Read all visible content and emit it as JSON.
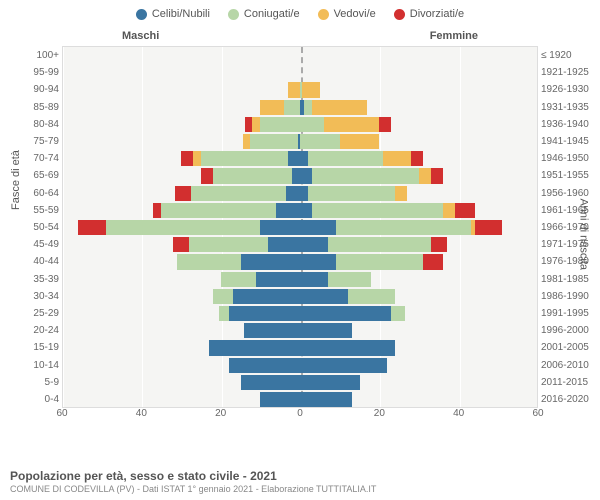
{
  "legend": [
    {
      "label": "Celibi/Nubili",
      "color": "#3a75a1"
    },
    {
      "label": "Coniugati/e",
      "color": "#b7d6a7"
    },
    {
      "label": "Vedovi/e",
      "color": "#f2bc57"
    },
    {
      "label": "Divorziati/e",
      "color": "#d22f2f"
    }
  ],
  "side_labels": {
    "m": "Maschi",
    "f": "Femmine"
  },
  "axis_labels": {
    "left": "Fasce di età",
    "right": "Anni di nascita"
  },
  "chart": {
    "type": "population-pyramid",
    "background_color": "#f5f5f3",
    "grid_color": "#ffffff",
    "center_color": "#aaaaaa",
    "xmax": 60,
    "xtick_step": 20,
    "xticks": [
      60,
      40,
      20,
      0,
      20,
      40,
      60
    ],
    "row_height": 17.2,
    "rows": [
      {
        "age": "100+",
        "birth": "≤ 1920",
        "m": [
          0,
          0,
          0,
          0
        ],
        "f": [
          0,
          0,
          0,
          0
        ]
      },
      {
        "age": "95-99",
        "birth": "1921-1925",
        "m": [
          0,
          0,
          0,
          0
        ],
        "f": [
          0,
          0,
          0,
          0
        ]
      },
      {
        "age": "90-94",
        "birth": "1926-1930",
        "m": [
          0,
          0,
          3,
          0
        ],
        "f": [
          0,
          0.5,
          4.5,
          0
        ]
      },
      {
        "age": "85-89",
        "birth": "1931-1935",
        "m": [
          0,
          4,
          6,
          0
        ],
        "f": [
          1,
          2,
          14,
          0
        ]
      },
      {
        "age": "80-84",
        "birth": "1936-1940",
        "m": [
          0,
          10,
          2,
          2
        ],
        "f": [
          0,
          6,
          14,
          3
        ]
      },
      {
        "age": "75-79",
        "birth": "1941-1945",
        "m": [
          0.5,
          12,
          2,
          0
        ],
        "f": [
          0,
          10,
          10,
          0
        ]
      },
      {
        "age": "70-74",
        "birth": "1946-1950",
        "m": [
          3,
          22,
          2,
          3
        ],
        "f": [
          2,
          19,
          7,
          3
        ]
      },
      {
        "age": "65-69",
        "birth": "1951-1955",
        "m": [
          2,
          20,
          0,
          3
        ],
        "f": [
          3,
          27,
          3,
          3
        ]
      },
      {
        "age": "60-64",
        "birth": "1956-1960",
        "m": [
          3.5,
          24,
          0,
          4
        ],
        "f": [
          2,
          22,
          3,
          0
        ]
      },
      {
        "age": "55-59",
        "birth": "1961-1965",
        "m": [
          6,
          29,
          0,
          2
        ],
        "f": [
          3,
          33,
          3,
          5
        ]
      },
      {
        "age": "50-54",
        "birth": "1966-1970",
        "m": [
          10,
          39,
          0,
          7
        ],
        "f": [
          9,
          34,
          1,
          7
        ]
      },
      {
        "age": "45-49",
        "birth": "1971-1975",
        "m": [
          8,
          20,
          0,
          4
        ],
        "f": [
          7,
          26,
          0,
          4
        ]
      },
      {
        "age": "40-44",
        "birth": "1976-1980",
        "m": [
          15,
          16,
          0,
          0
        ],
        "f": [
          9,
          22,
          0,
          5
        ]
      },
      {
        "age": "35-39",
        "birth": "1981-1985",
        "m": [
          11,
          9,
          0,
          0
        ],
        "f": [
          7,
          11,
          0,
          0
        ]
      },
      {
        "age": "30-34",
        "birth": "1986-1990",
        "m": [
          17,
          5,
          0,
          0
        ],
        "f": [
          12,
          12,
          0,
          0
        ]
      },
      {
        "age": "25-29",
        "birth": "1991-1995",
        "m": [
          18,
          2.5,
          0,
          0
        ],
        "f": [
          23,
          3.5,
          0,
          0
        ]
      },
      {
        "age": "20-24",
        "birth": "1996-2000",
        "m": [
          14,
          0,
          0,
          0
        ],
        "f": [
          13,
          0,
          0,
          0
        ]
      },
      {
        "age": "15-19",
        "birth": "2001-2005",
        "m": [
          23,
          0,
          0,
          0
        ],
        "f": [
          24,
          0,
          0,
          0
        ]
      },
      {
        "age": "10-14",
        "birth": "2006-2010",
        "m": [
          18,
          0,
          0,
          0
        ],
        "f": [
          22,
          0,
          0,
          0
        ]
      },
      {
        "age": "5-9",
        "birth": "2011-2015",
        "m": [
          15,
          0,
          0,
          0
        ],
        "f": [
          15,
          0,
          0,
          0
        ]
      },
      {
        "age": "0-4",
        "birth": "2016-2020",
        "m": [
          10,
          0,
          0,
          0
        ],
        "f": [
          13,
          0,
          0,
          0
        ]
      }
    ]
  },
  "footer": {
    "title": "Popolazione per età, sesso e stato civile - 2021",
    "sub": "COMUNE DI CODEVILLA (PV) - Dati ISTAT 1° gennaio 2021 - Elaborazione TUTTITALIA.IT"
  }
}
